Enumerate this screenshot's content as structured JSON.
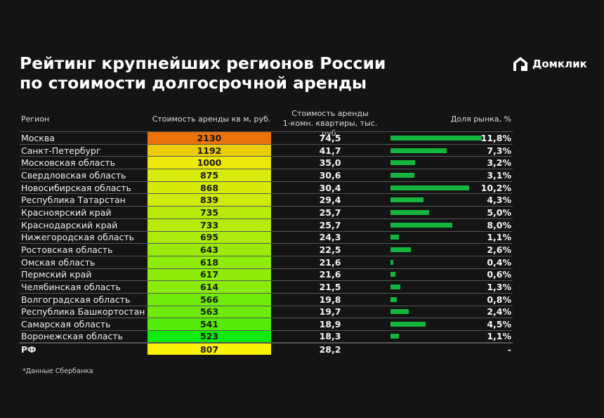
{
  "title_line1": "Рейтинг крупнейших регионов России",
  "title_line2": "по стоимости долгосрочной аренды",
  "logo": {
    "text": "Домклик",
    "icon": "house-logo-icon"
  },
  "headers": {
    "region": "Регион",
    "cost": "Стоимость аренды кв м, руб.",
    "apt_line1": "Стоимость аренды",
    "apt_line2": "1-комн. квартиры, тыс. руб.",
    "share": "Доля рынка, %"
  },
  "footnote": "*Данные Сбербанка",
  "colors": {
    "bar": "#14b53c",
    "cost_high": "#f59a16",
    "cost_low": "#28b63c"
  },
  "rows": [
    {
      "region": "Москва",
      "cost": "2130",
      "apt": "74,5",
      "share": "11,8%"
    },
    {
      "region": "Санкт-Петербург",
      "cost": "1192",
      "apt": "41,7",
      "share": "7,3%"
    },
    {
      "region": "Московская область",
      "cost": "1000",
      "apt": "35,0",
      "share": "3,2%"
    },
    {
      "region": "Свердловская область",
      "cost": "875",
      "apt": "30,6",
      "share": "3,1%"
    },
    {
      "region": "Новосибирская область",
      "cost": "868",
      "apt": "30,4",
      "share": "10,2%"
    },
    {
      "region": "Республика Татарстан",
      "cost": "839",
      "apt": "29,4",
      "share": "4,3%"
    },
    {
      "region": "Красноярский край",
      "cost": "735",
      "apt": "25,7",
      "share": "5,0%"
    },
    {
      "region": "Краснодарский край",
      "cost": "733",
      "apt": "25,7",
      "share": "8,0%"
    },
    {
      "region": "Нижегородская область",
      "cost": "695",
      "apt": "24,3",
      "share": "1,1%"
    },
    {
      "region": "Ростовская область",
      "cost": "643",
      "apt": "22,5",
      "share": "2,6%"
    },
    {
      "region": "Омская область",
      "cost": "618",
      "apt": "21,6",
      "share": "0,4%"
    },
    {
      "region": "Пермский край",
      "cost": "617",
      "apt": "21,6",
      "share": "0,6%"
    },
    {
      "region": "Челябинская область",
      "cost": "614",
      "apt": "21,5",
      "share": "1,3%"
    },
    {
      "region": "Волгоградская область",
      "cost": "566",
      "apt": "19,8",
      "share": "0,8%"
    },
    {
      "region": "Республика Башкортостан",
      "cost": "563",
      "apt": "19,7",
      "share": "2,4%"
    },
    {
      "region": "Самарская область",
      "cost": "541",
      "apt": "18,9",
      "share": "4,5%"
    },
    {
      "region": "Воронежская область",
      "cost": "523",
      "apt": "18,3",
      "share": "1,1%"
    }
  ],
  "total": {
    "region": "РФ",
    "cost": "807",
    "apt": "28,2",
    "share": "-"
  },
  "chart_data": {
    "type": "table",
    "columns": [
      "Регион",
      "Стоимость аренды кв м, руб.",
      "Стоимость аренды 1-комн. квартиры, тыс. руб.",
      "Доля рынка, %"
    ],
    "categories": [
      "Москва",
      "Санкт-Петербург",
      "Московская область",
      "Свердловская область",
      "Новосибирская область",
      "Республика Татарстан",
      "Красноярский край",
      "Краснодарский край",
      "Нижегородская область",
      "Ростовская область",
      "Омская область",
      "Пермский край",
      "Челябинская область",
      "Волгоградская область",
      "Республика Башкортостан",
      "Самарская область",
      "Воронежская область",
      "РФ"
    ],
    "series": [
      {
        "name": "Стоимость аренды кв м, руб.",
        "values": [
          2130,
          1192,
          1000,
          875,
          868,
          839,
          735,
          733,
          695,
          643,
          618,
          617,
          614,
          566,
          563,
          541,
          523,
          807
        ]
      },
      {
        "name": "Стоимость аренды 1-комн. квартиры, тыс. руб.",
        "values": [
          74.5,
          41.7,
          35.0,
          30.6,
          30.4,
          29.4,
          25.7,
          25.7,
          24.3,
          22.5,
          21.6,
          21.6,
          21.5,
          19.8,
          19.7,
          18.9,
          18.3,
          28.2
        ]
      },
      {
        "name": "Доля рынка, %",
        "values": [
          11.8,
          7.3,
          3.2,
          3.1,
          10.2,
          4.3,
          5.0,
          8.0,
          1.1,
          2.6,
          0.4,
          0.6,
          1.3,
          0.8,
          2.4,
          4.5,
          1.1,
          null
        ]
      }
    ]
  }
}
